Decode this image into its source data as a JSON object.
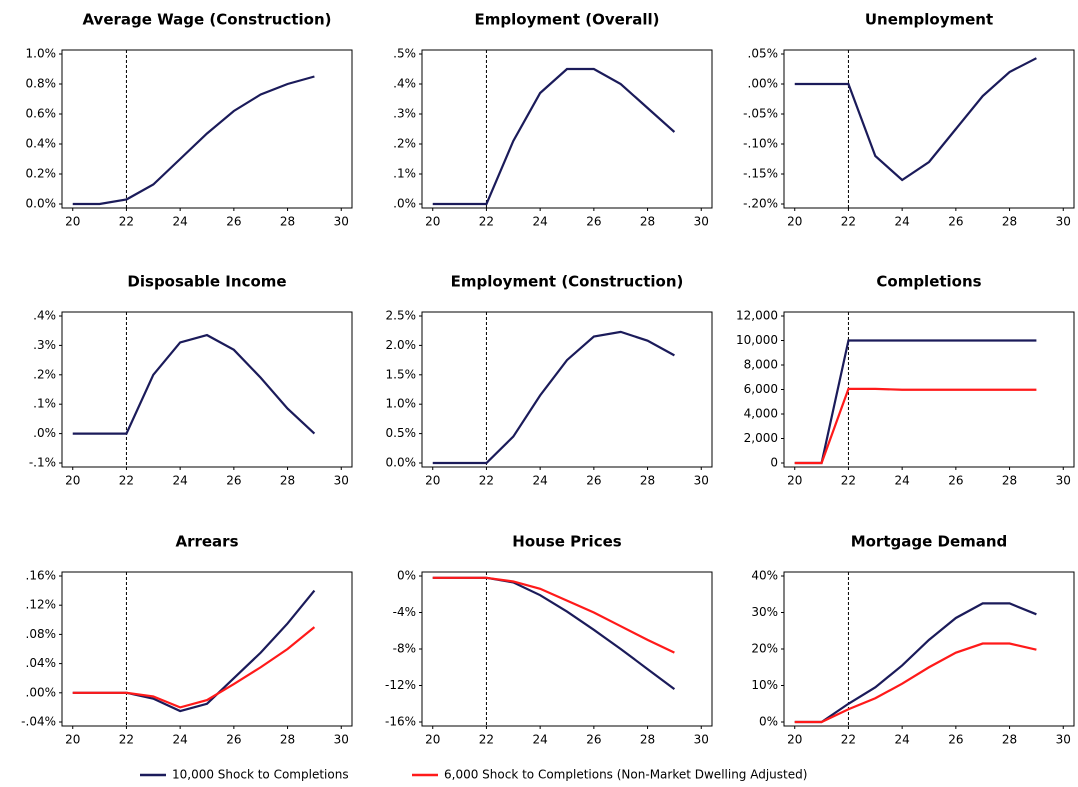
{
  "chart_data": [
    {
      "type": "line",
      "title": "Average Wage (Construction)",
      "x": [
        20,
        21,
        22,
        23,
        24,
        25,
        26,
        27,
        28,
        29
      ],
      "xlim": [
        19.6,
        30.4
      ],
      "xticks": [
        20,
        22,
        24,
        26,
        28,
        30
      ],
      "vline": 22,
      "ylim": [
        0,
        1.0
      ],
      "yticks": [
        {
          "value": 0,
          "label": "0.0%"
        },
        {
          "value": 0.2,
          "label": "0.2%"
        },
        {
          "value": 0.4,
          "label": "0.4%"
        },
        {
          "value": 0.6,
          "label": "0.6%"
        },
        {
          "value": 0.8,
          "label": "0.8%"
        },
        {
          "value": 1.0,
          "label": "1.0%"
        }
      ],
      "series": [
        {
          "name": "10,000 Shock to Completions",
          "color": "#1b1b5a",
          "values": [
            0,
            0,
            0.03,
            0.13,
            0.3,
            0.47,
            0.62,
            0.73,
            0.8,
            0.85
          ]
        }
      ]
    },
    {
      "type": "line",
      "title": "Employment (Overall)",
      "x": [
        20,
        21,
        22,
        23,
        24,
        25,
        26,
        27,
        28,
        29
      ],
      "xlim": [
        19.6,
        30.4
      ],
      "xticks": [
        20,
        22,
        24,
        26,
        28,
        30
      ],
      "vline": 22,
      "ylim": [
        0,
        0.5
      ],
      "yticks": [
        {
          "value": 0,
          "label": ".0%"
        },
        {
          "value": 0.1,
          "label": ".1%"
        },
        {
          "value": 0.2,
          "label": ".2%"
        },
        {
          "value": 0.3,
          "label": ".3%"
        },
        {
          "value": 0.4,
          "label": ".4%"
        },
        {
          "value": 0.5,
          "label": ".5%"
        }
      ],
      "series": [
        {
          "name": "10,000 Shock to Completions",
          "color": "#1b1b5a",
          "values": [
            0,
            0,
            0,
            0.21,
            0.37,
            0.45,
            0.45,
            0.4,
            0.32,
            0.24
          ]
        }
      ]
    },
    {
      "type": "line",
      "title": "Unemployment",
      "x": [
        20,
        21,
        22,
        23,
        24,
        25,
        26,
        27,
        28,
        29
      ],
      "xlim": [
        19.6,
        30.4
      ],
      "xticks": [
        20,
        22,
        24,
        26,
        28,
        30
      ],
      "vline": 22,
      "ylim": [
        -0.2,
        0.05
      ],
      "yticks": [
        {
          "value": -0.2,
          "label": "-.20%"
        },
        {
          "value": -0.15,
          "label": "-.15%"
        },
        {
          "value": -0.1,
          "label": "-.10%"
        },
        {
          "value": -0.05,
          "label": "-.05%"
        },
        {
          "value": 0,
          "label": ".00%"
        },
        {
          "value": 0.05,
          "label": ".05%"
        }
      ],
      "series": [
        {
          "name": "10,000 Shock to Completions",
          "color": "#1b1b5a",
          "values": [
            0,
            0,
            0,
            -0.12,
            -0.16,
            -0.13,
            -0.075,
            -0.02,
            0.02,
            0.043
          ]
        }
      ]
    },
    {
      "type": "line",
      "title": "Disposable Income",
      "x": [
        20,
        21,
        22,
        23,
        24,
        25,
        26,
        27,
        28,
        29
      ],
      "xlim": [
        19.6,
        30.4
      ],
      "xticks": [
        20,
        22,
        24,
        26,
        28,
        30
      ],
      "vline": 22,
      "ylim": [
        -0.1,
        0.4
      ],
      "yticks": [
        {
          "value": -0.1,
          "label": "-.1%"
        },
        {
          "value": 0,
          "label": ".0%"
        },
        {
          "value": 0.1,
          "label": ".1%"
        },
        {
          "value": 0.2,
          "label": ".2%"
        },
        {
          "value": 0.3,
          "label": ".3%"
        },
        {
          "value": 0.4,
          "label": ".4%"
        }
      ],
      "series": [
        {
          "name": "10,000 Shock to Completions",
          "color": "#1b1b5a",
          "values": [
            0,
            0,
            0,
            0.2,
            0.31,
            0.335,
            0.285,
            0.19,
            0.085,
            0
          ]
        }
      ]
    },
    {
      "type": "line",
      "title": "Employment (Construction)",
      "x": [
        20,
        21,
        22,
        23,
        24,
        25,
        26,
        27,
        28,
        29
      ],
      "xlim": [
        19.6,
        30.4
      ],
      "xticks": [
        20,
        22,
        24,
        26,
        28,
        30
      ],
      "vline": 22,
      "ylim": [
        0,
        2.5
      ],
      "yticks": [
        {
          "value": 0,
          "label": "0.0%"
        },
        {
          "value": 0.5,
          "label": "0.5%"
        },
        {
          "value": 1.0,
          "label": "1.0%"
        },
        {
          "value": 1.5,
          "label": "1.5%"
        },
        {
          "value": 2.0,
          "label": "2.0%"
        },
        {
          "value": 2.5,
          "label": "2.5%"
        }
      ],
      "series": [
        {
          "name": "10,000 Shock to Completions",
          "color": "#1b1b5a",
          "values": [
            0,
            0,
            0,
            0.45,
            1.15,
            1.75,
            2.15,
            2.23,
            2.08,
            1.83
          ]
        }
      ]
    },
    {
      "type": "line",
      "title": "Completions",
      "x": [
        20,
        21,
        22,
        23,
        24,
        25,
        26,
        27,
        28,
        29
      ],
      "xlim": [
        19.6,
        30.4
      ],
      "xticks": [
        20,
        22,
        24,
        26,
        28,
        30
      ],
      "vline": 22,
      "ylim": [
        0,
        12000
      ],
      "yticks": [
        0,
        {
          "value": 2000,
          "label": "2,000"
        },
        {
          "value": 4000,
          "label": "4,000"
        },
        {
          "value": 6000,
          "label": "6,000"
        },
        {
          "value": 8000,
          "label": "8,000"
        },
        {
          "value": 10000,
          "label": "10,000"
        },
        {
          "value": 12000,
          "label": "12,000"
        }
      ],
      "series": [
        {
          "name": "10,000 Shock to Completions",
          "color": "#1b1b5a",
          "values": [
            0,
            0,
            10000,
            10000,
            10000,
            10000,
            10000,
            10000,
            10000,
            10000
          ]
        },
        {
          "name": "6,000 Shock to Completions (Non-Market Dwelling Adjusted)",
          "color": "#ff1a1a",
          "values": [
            0,
            0,
            6050,
            6050,
            5980,
            5980,
            5980,
            5980,
            5980,
            5980
          ]
        }
      ]
    },
    {
      "type": "line",
      "title": "Arrears",
      "x": [
        20,
        21,
        22,
        23,
        24,
        25,
        26,
        27,
        28,
        29
      ],
      "xlim": [
        19.6,
        30.4
      ],
      "xticks": [
        20,
        22,
        24,
        26,
        28,
        30
      ],
      "vline": 22,
      "ylim": [
        -0.04,
        0.16
      ],
      "yticks": [
        {
          "value": -0.04,
          "label": "-.04%"
        },
        {
          "value": 0,
          "label": ".00%"
        },
        {
          "value": 0.04,
          "label": ".04%"
        },
        {
          "value": 0.08,
          "label": ".08%"
        },
        {
          "value": 0.12,
          "label": ".12%"
        },
        {
          "value": 0.16,
          "label": ".16%"
        }
      ],
      "series": [
        {
          "name": "10,000 Shock to Completions",
          "color": "#1b1b5a",
          "values": [
            0,
            0,
            0,
            -0.008,
            -0.025,
            -0.015,
            0.02,
            0.055,
            0.095,
            0.14
          ]
        },
        {
          "name": "6,000 Shock to Completions (Non-Market Dwelling Adjusted)",
          "color": "#ff1a1a",
          "values": [
            0,
            0,
            0,
            -0.005,
            -0.02,
            -0.01,
            0.012,
            0.035,
            0.06,
            0.09
          ]
        }
      ]
    },
    {
      "type": "line",
      "title": "House Prices",
      "x": [
        20,
        21,
        22,
        23,
        24,
        25,
        26,
        27,
        28,
        29
      ],
      "xlim": [
        19.6,
        30.4
      ],
      "xticks": [
        20,
        22,
        24,
        26,
        28,
        30
      ],
      "vline": 22,
      "ylim": [
        -16,
        0
      ],
      "yticks": [
        {
          "value": -16,
          "label": "-16%"
        },
        {
          "value": -12,
          "label": "-12%"
        },
        {
          "value": -8,
          "label": "-8%"
        },
        {
          "value": -4,
          "label": "-4%"
        },
        {
          "value": 0,
          "label": "0%"
        }
      ],
      "series": [
        {
          "name": "10,000 Shock to Completions",
          "color": "#1b1b5a",
          "values": [
            -0.2,
            -0.2,
            -0.2,
            -0.7,
            -2.1,
            -3.9,
            -5.9,
            -8,
            -10.2,
            -12.4
          ]
        },
        {
          "name": "6,000 Shock to Completions (Non-Market Dwelling Adjusted)",
          "color": "#ff1a1a",
          "values": [
            -0.2,
            -0.2,
            -0.2,
            -0.6,
            -1.4,
            -2.7,
            -4,
            -5.5,
            -7,
            -8.4
          ]
        }
      ]
    },
    {
      "type": "line",
      "title": "Mortgage Demand",
      "x": [
        20,
        21,
        22,
        23,
        24,
        25,
        26,
        27,
        28,
        29
      ],
      "xlim": [
        19.6,
        30.4
      ],
      "xticks": [
        20,
        22,
        24,
        26,
        28,
        30
      ],
      "vline": 22,
      "ylim": [
        0,
        40
      ],
      "yticks": [
        {
          "value": 0,
          "label": "0%"
        },
        {
          "value": 10,
          "label": "10%"
        },
        {
          "value": 20,
          "label": "20%"
        },
        {
          "value": 30,
          "label": "30%"
        },
        {
          "value": 40,
          "label": "40%"
        }
      ],
      "series": [
        {
          "name": "10,000 Shock to Completions",
          "color": "#1b1b5a",
          "values": [
            0,
            0,
            5,
            9.5,
            15.5,
            22.5,
            28.5,
            32.5,
            32.5,
            29.5
          ]
        },
        {
          "name": "6,000 Shock to Completions (Non-Market Dwelling Adjusted)",
          "color": "#ff1a1a",
          "values": [
            0,
            0,
            3.5,
            6.5,
            10.5,
            15,
            19,
            21.5,
            21.5,
            19.8
          ]
        }
      ]
    }
  ]
}
